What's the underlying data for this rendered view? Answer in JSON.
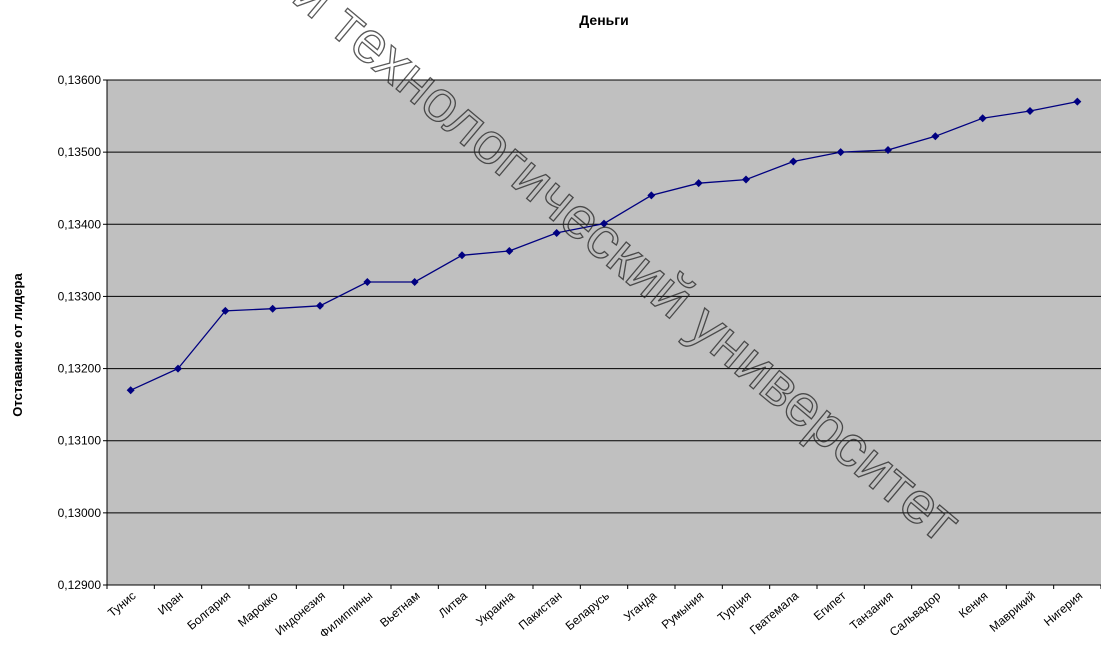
{
  "chart_data": {
    "type": "line",
    "title": "Деньги",
    "xlabel": "",
    "ylabel": "Отставание от лидера",
    "ylim": [
      0.129,
      0.136
    ],
    "y_ticks": [
      "0,12900",
      "0,13000",
      "0,13100",
      "0,13200",
      "0,13300",
      "0,13400",
      "0,13500",
      "0,13600"
    ],
    "grid": true,
    "legend": "none",
    "categories": [
      "Тунис",
      "Иран",
      "Болгария",
      "Марокко",
      "Индонезия",
      "Филиппины",
      "Вьетнам",
      "Литва",
      "Украина",
      "Пакистан",
      "Беларусь",
      "Уганда",
      "Румыния",
      "Турция",
      "Гватемала",
      "Египет",
      "Танзания",
      "Сальвадор",
      "Кения",
      "Маврикий",
      "Нигерия"
    ],
    "values": [
      0.1317,
      0.132,
      0.1328,
      0.13283,
      0.13287,
      0.1332,
      0.1332,
      0.13357,
      0.13363,
      0.13388,
      0.13401,
      0.1344,
      0.13457,
      0.13462,
      0.13487,
      0.135,
      0.13503,
      0.13522,
      0.13547,
      0.13557,
      0.1357
    ],
    "colors": {
      "plot_bg": "#c0c0c0",
      "line": "#000080",
      "grid": "#000000"
    }
  },
  "watermark": {
    "text": "и технологический университет"
  }
}
